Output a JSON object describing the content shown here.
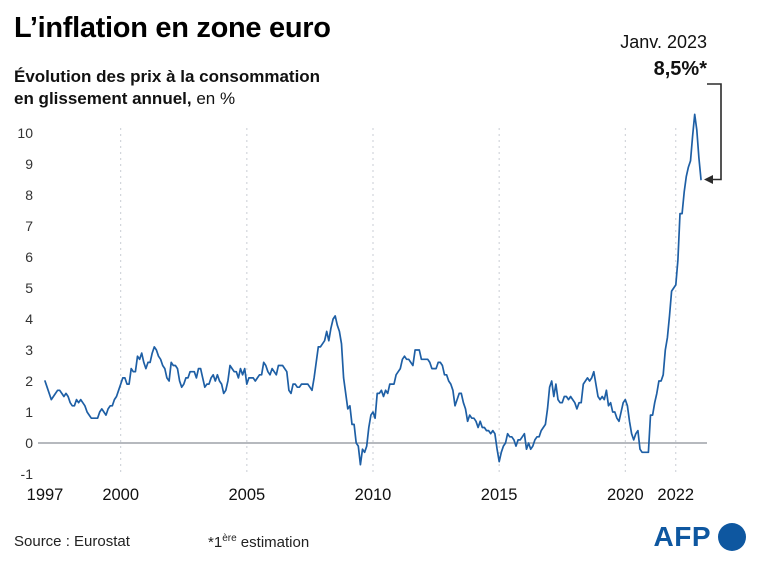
{
  "header": {
    "title": "L’inflation en zone euro",
    "subtitle_line1": "Évolution des prix à la consommation",
    "subtitle_line2_bold": "en glissement annuel,",
    "subtitle_line2_regular": " en %"
  },
  "annotation": {
    "date": "Janv. 2023",
    "value": "8,5%*"
  },
  "footer": {
    "source": "Source : Eurostat",
    "note_prefix": "*1",
    "note_sup": "ère",
    "note_suffix": " estimation",
    "logo_text": "AFP"
  },
  "colors": {
    "line": "#1e5fa5",
    "logo_blue": "#0e57a0",
    "grid": "#c9cdd4",
    "zero_line": "#8a8f98",
    "bracket": "#2b2b2b",
    "text": "#111111"
  },
  "chart_data": {
    "type": "line",
    "title": "L’inflation en zone euro",
    "subtitle": "Évolution des prix à la consommation en glissement annuel, en %",
    "x_start": "1997-01",
    "x_end": "2023-01",
    "frequency": "monthly",
    "ylim": [
      -1,
      10
    ],
    "yticks": [
      -1,
      0,
      1,
      2,
      3,
      4,
      5,
      6,
      7,
      8,
      9,
      10
    ],
    "xticks": [
      1997,
      2000,
      2005,
      2010,
      2015,
      2020,
      2022
    ],
    "grid": "vertical-dashed",
    "legend": "none",
    "annotation": {
      "label": "Janv. 2023",
      "value_label": "8,5%*",
      "last_value": 8.5
    },
    "values": [
      2.0,
      1.8,
      1.6,
      1.4,
      1.5,
      1.6,
      1.7,
      1.7,
      1.6,
      1.5,
      1.6,
      1.5,
      1.3,
      1.2,
      1.2,
      1.4,
      1.3,
      1.4,
      1.3,
      1.2,
      1.0,
      0.9,
      0.8,
      0.8,
      0.8,
      0.8,
      1.0,
      1.1,
      1.0,
      0.9,
      1.1,
      1.2,
      1.2,
      1.4,
      1.5,
      1.7,
      1.9,
      2.1,
      2.1,
      1.9,
      1.9,
      2.4,
      2.3,
      2.3,
      2.8,
      2.7,
      2.9,
      2.6,
      2.4,
      2.6,
      2.6,
      2.9,
      3.1,
      3.0,
      2.8,
      2.7,
      2.5,
      2.4,
      2.1,
      2.0,
      2.6,
      2.5,
      2.5,
      2.4,
      2.0,
      1.8,
      1.9,
      2.1,
      2.1,
      2.3,
      2.3,
      2.3,
      2.1,
      2.4,
      2.4,
      2.1,
      1.8,
      1.9,
      1.9,
      2.1,
      2.2,
      2.0,
      2.2,
      2.0,
      1.9,
      1.6,
      1.7,
      2.0,
      2.5,
      2.4,
      2.3,
      2.3,
      2.1,
      2.4,
      2.2,
      2.4,
      1.9,
      2.1,
      2.1,
      2.1,
      2.0,
      2.1,
      2.2,
      2.2,
      2.6,
      2.5,
      2.3,
      2.2,
      2.4,
      2.3,
      2.2,
      2.5,
      2.5,
      2.5,
      2.4,
      2.3,
      1.7,
      1.6,
      1.9,
      1.9,
      1.8,
      1.8,
      1.9,
      1.9,
      1.9,
      1.9,
      1.8,
      1.7,
      2.1,
      2.6,
      3.1,
      3.1,
      3.2,
      3.3,
      3.6,
      3.3,
      3.7,
      4.0,
      4.1,
      3.8,
      3.6,
      3.2,
      2.1,
      1.6,
      1.1,
      1.2,
      0.6,
      0.6,
      0.0,
      -0.1,
      -0.7,
      -0.2,
      -0.3,
      -0.1,
      0.5,
      0.9,
      1.0,
      0.8,
      1.6,
      1.6,
      1.7,
      1.5,
      1.7,
      1.6,
      1.9,
      1.9,
      1.9,
      2.2,
      2.3,
      2.4,
      2.7,
      2.8,
      2.7,
      2.7,
      2.6,
      2.5,
      3.0,
      3.0,
      3.0,
      2.7,
      2.7,
      2.7,
      2.7,
      2.6,
      2.4,
      2.4,
      2.4,
      2.6,
      2.6,
      2.5,
      2.2,
      2.2,
      2.0,
      1.9,
      1.7,
      1.2,
      1.4,
      1.6,
      1.6,
      1.3,
      1.1,
      0.7,
      0.9,
      0.8,
      0.8,
      0.7,
      0.5,
      0.7,
      0.5,
      0.5,
      0.4,
      0.4,
      0.3,
      0.4,
      0.3,
      -0.2,
      -0.6,
      -0.3,
      -0.1,
      0.0,
      0.3,
      0.2,
      0.2,
      0.1,
      -0.1,
      0.1,
      0.1,
      0.2,
      0.3,
      -0.2,
      0.0,
      -0.2,
      -0.1,
      0.1,
      0.2,
      0.2,
      0.4,
      0.5,
      0.6,
      1.1,
      1.8,
      2.0,
      1.5,
      1.9,
      1.4,
      1.3,
      1.3,
      1.5,
      1.5,
      1.4,
      1.5,
      1.4,
      1.3,
      1.1,
      1.3,
      1.3,
      1.9,
      2.0,
      2.1,
      2.0,
      2.1,
      2.3,
      1.9,
      1.5,
      1.4,
      1.5,
      1.4,
      1.7,
      1.2,
      1.3,
      1.0,
      1.0,
      0.8,
      0.7,
      1.0,
      1.3,
      1.4,
      1.2,
      0.7,
      0.3,
      0.1,
      0.3,
      0.4,
      -0.2,
      -0.3,
      -0.3,
      -0.3,
      -0.3,
      0.9,
      0.9,
      1.3,
      1.6,
      2.0,
      2.0,
      2.2,
      3.0,
      3.4,
      4.1,
      4.9,
      5.0,
      5.1,
      5.9,
      7.4,
      7.4,
      8.1,
      8.6,
      8.9,
      9.1,
      9.9,
      10.6,
      10.1,
      9.2,
      8.5
    ]
  }
}
